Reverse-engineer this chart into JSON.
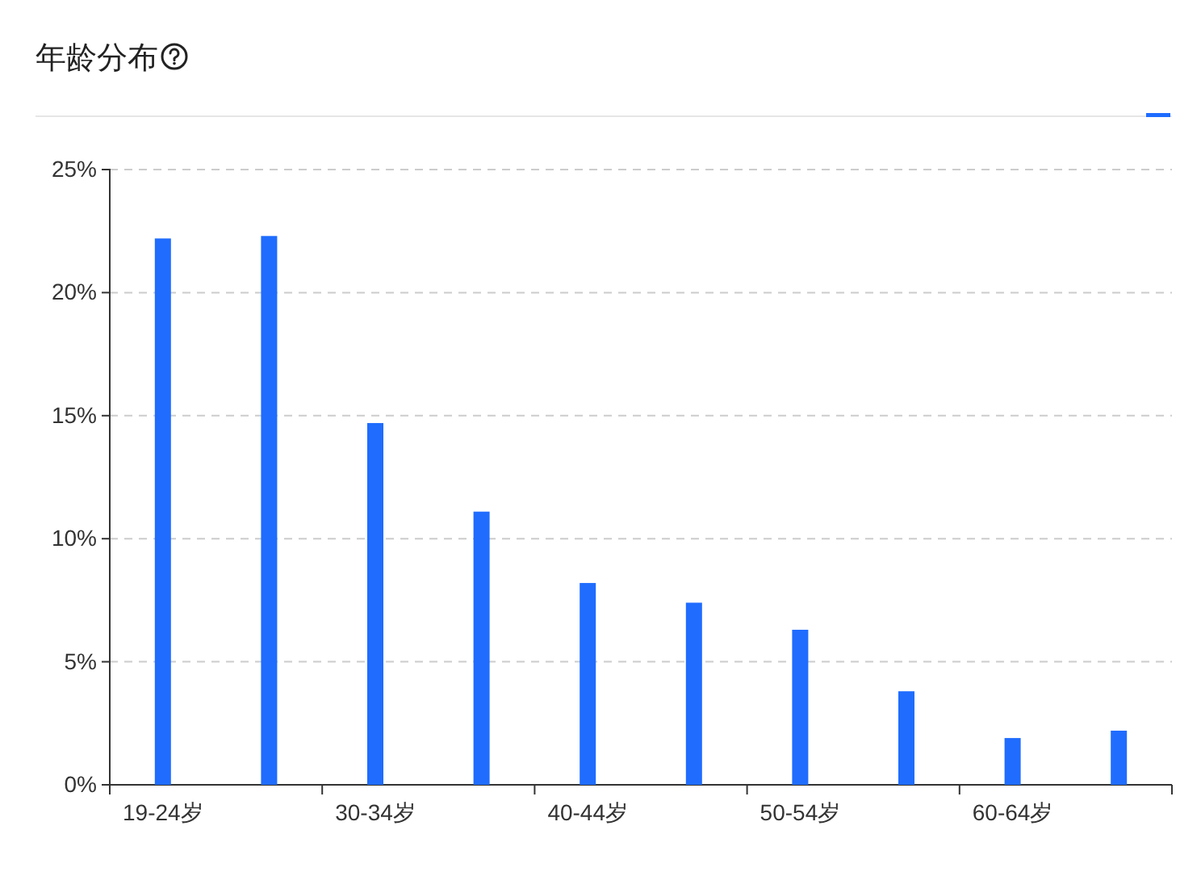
{
  "chart_data": {
    "type": "bar",
    "title": "年龄分布",
    "categories": [
      "19-24岁",
      null,
      "30-34岁",
      null,
      "40-44岁",
      null,
      "50-54岁",
      null,
      "60-64岁",
      null
    ],
    "series": [
      {
        "color": "#1f6cff",
        "values": [
          22.2,
          22.3,
          14.7,
          11.1,
          8.2,
          7.4,
          6.3,
          3.8,
          1.9,
          2.2
        ]
      }
    ],
    "ylim": [
      0,
      25
    ],
    "yticks": [
      {
        "value": 0,
        "label": "0%"
      },
      {
        "value": 5,
        "label": "5%"
      },
      {
        "value": 10,
        "label": "10%"
      },
      {
        "value": 15,
        "label": "15%"
      },
      {
        "value": 20,
        "label": "20%"
      },
      {
        "value": 25,
        "label": "25%"
      }
    ],
    "grid": "y"
  }
}
